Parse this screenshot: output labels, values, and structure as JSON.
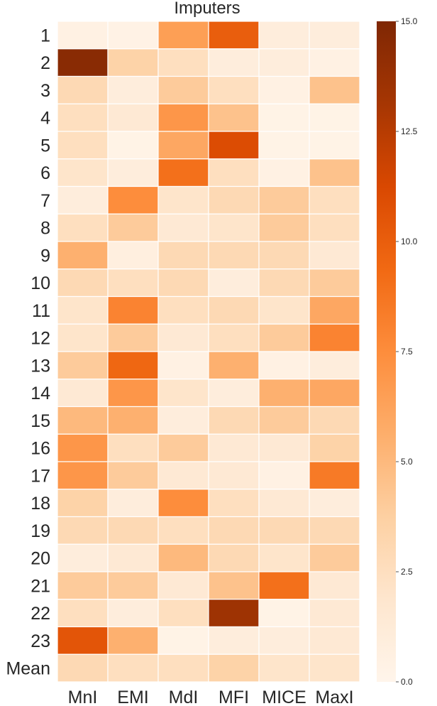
{
  "chart_data": {
    "type": "heatmap",
    "title": "Imputers",
    "columns": [
      "MnI",
      "EMI",
      "MdI",
      "MFI",
      "MICE",
      "MaxI"
    ],
    "rows": [
      "1",
      "2",
      "3",
      "4",
      "5",
      "6",
      "7",
      "8",
      "9",
      "10",
      "11",
      "12",
      "13",
      "14",
      "15",
      "16",
      "17",
      "18",
      "19",
      "20",
      "21",
      "22",
      "23",
      "Mean"
    ],
    "values": [
      [
        0.5,
        0.4,
        6.5,
        10.0,
        1.0,
        1.0
      ],
      [
        14.5,
        3.5,
        2.5,
        1.0,
        1.0,
        0.5
      ],
      [
        3.0,
        1.0,
        4.0,
        2.5,
        0.5,
        4.5
      ],
      [
        2.5,
        1.5,
        7.0,
        4.5,
        0.3,
        0.3
      ],
      [
        2.5,
        0.3,
        6.0,
        11.0,
        0.3,
        0.3
      ],
      [
        2.0,
        1.0,
        9.0,
        2.5,
        0.5,
        4.5
      ],
      [
        1.0,
        7.5,
        2.0,
        3.0,
        4.0,
        2.5
      ],
      [
        2.5,
        4.0,
        1.5,
        2.0,
        4.0,
        2.5
      ],
      [
        5.5,
        0.8,
        3.0,
        3.0,
        3.0,
        1.5
      ],
      [
        3.0,
        2.5,
        3.0,
        1.0,
        3.0,
        4.0
      ],
      [
        2.0,
        8.0,
        2.5,
        3.0,
        2.0,
        6.0
      ],
      [
        2.0,
        4.0,
        1.5,
        2.5,
        4.0,
        8.0
      ],
      [
        4.0,
        9.5,
        0.5,
        5.5,
        0.5,
        1.0
      ],
      [
        1.5,
        7.0,
        2.0,
        1.0,
        5.5,
        6.0
      ],
      [
        5.0,
        5.5,
        1.0,
        3.0,
        4.0,
        3.0
      ],
      [
        7.0,
        2.5,
        4.0,
        1.5,
        1.5,
        3.5
      ],
      [
        7.0,
        4.0,
        1.5,
        1.5,
        0.5,
        8.5
      ],
      [
        3.5,
        1.0,
        7.5,
        2.5,
        1.5,
        1.0
      ],
      [
        3.0,
        3.0,
        2.5,
        3.0,
        3.0,
        3.0
      ],
      [
        1.0,
        1.5,
        5.0,
        3.0,
        2.0,
        4.0
      ],
      [
        4.0,
        4.0,
        1.5,
        4.5,
        9.0,
        1.5
      ],
      [
        2.5,
        1.0,
        2.5,
        13.5,
        0.3,
        1.5
      ],
      [
        10.5,
        5.5,
        0.3,
        1.0,
        1.0,
        1.5
      ],
      [
        3.0,
        2.5,
        2.5,
        3.5,
        2.0,
        2.0
      ]
    ],
    "vmin": 0.0,
    "vmax": 15.0,
    "colormap": "Oranges",
    "colormap_stops": [
      "#fff5eb",
      "#fee6ce",
      "#fdd0a2",
      "#fdae6b",
      "#fd8d3c",
      "#f16913",
      "#d94801",
      "#a63603",
      "#7f2704"
    ],
    "colorbar": {
      "placement": "right",
      "ticks": [
        "0.0",
        "2.5",
        "5.0",
        "7.5",
        "10.0",
        "12.5",
        "15.0"
      ]
    },
    "grid": "white cell borders"
  }
}
